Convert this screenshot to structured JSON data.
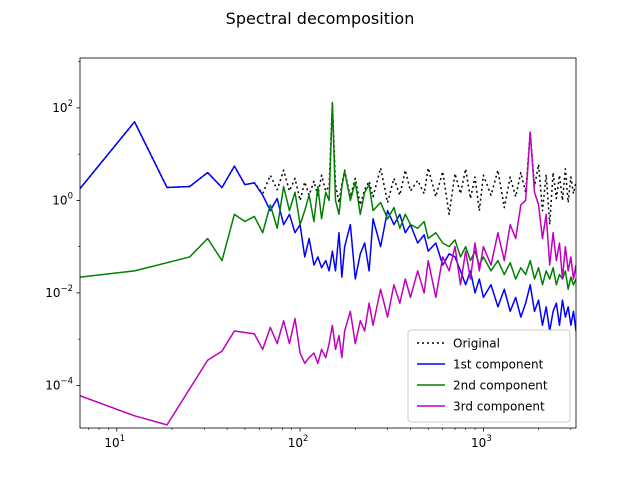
{
  "chart_data": {
    "type": "line",
    "title": "Spectral decomposition",
    "xscale": "log",
    "yscale": "log",
    "xlim": [
      6.3,
      3200
    ],
    "ylim": [
      1.2e-05,
      1200
    ],
    "x_ticks": [
      {
        "value": 10,
        "base": "10",
        "exp": "1"
      },
      {
        "value": 100,
        "base": "10",
        "exp": "2"
      },
      {
        "value": 1000,
        "base": "10",
        "exp": "3"
      }
    ],
    "y_ticks": [
      {
        "value": 0.0001,
        "base": "10",
        "exp": "−4"
      },
      {
        "value": 0.01,
        "base": "10",
        "exp": "−2"
      },
      {
        "value": 1,
        "base": "10",
        "exp": "0"
      },
      {
        "value": 100,
        "base": "10",
        "exp": "2"
      }
    ],
    "legend_position": "lower-right",
    "series": [
      {
        "name": "Original",
        "color": "#000000",
        "dash": "dotted",
        "points": [
          [
            6.3,
            1.8
          ],
          [
            12.5,
            50
          ],
          [
            18.8,
            1.9
          ],
          [
            25,
            2.0
          ],
          [
            31.3,
            4.0
          ],
          [
            37.5,
            1.9
          ],
          [
            43.8,
            5.5
          ],
          [
            50,
            2.2
          ],
          [
            56.3,
            2.4
          ],
          [
            62.5,
            1.4
          ],
          [
            68.8,
            3.5
          ],
          [
            75,
            1.7
          ],
          [
            81.3,
            4.5
          ],
          [
            87.5,
            1.6
          ],
          [
            93.8,
            3.0
          ],
          [
            100,
            1.0
          ],
          [
            106,
            2.5
          ],
          [
            112,
            1.3
          ],
          [
            119,
            2.6
          ],
          [
            125,
            1.3
          ],
          [
            131,
            3.5
          ],
          [
            138,
            1.6
          ],
          [
            144,
            2.0
          ],
          [
            150,
            130
          ],
          [
            156,
            2.2
          ],
          [
            163,
            0.9
          ],
          [
            169,
            2.3
          ],
          [
            175,
            4.5
          ],
          [
            188,
            1.2
          ],
          [
            200,
            3.0
          ],
          [
            213,
            0.8
          ],
          [
            225,
            1.7
          ],
          [
            238,
            2.6
          ],
          [
            250,
            1.2
          ],
          [
            275,
            5.0
          ],
          [
            300,
            0.9
          ],
          [
            325,
            3.0
          ],
          [
            350,
            1.3
          ],
          [
            375,
            4.5
          ],
          [
            400,
            1.6
          ],
          [
            438,
            2.7
          ],
          [
            475,
            1.4
          ],
          [
            500,
            5.0
          ],
          [
            550,
            1.2
          ],
          [
            600,
            4.2
          ],
          [
            650,
            0.5
          ],
          [
            700,
            3.8
          ],
          [
            750,
            1.4
          ],
          [
            800,
            4.8
          ],
          [
            850,
            1.1
          ],
          [
            900,
            3.2
          ],
          [
            950,
            0.6
          ],
          [
            1000,
            3.5
          ],
          [
            1100,
            1.3
          ],
          [
            1200,
            4.5
          ],
          [
            1300,
            0.7
          ],
          [
            1400,
            3.2
          ],
          [
            1500,
            1.2
          ],
          [
            1600,
            4.0
          ],
          [
            1700,
            1.5
          ],
          [
            1800,
            30
          ],
          [
            1900,
            2.0
          ],
          [
            2000,
            6.0
          ],
          [
            2100,
            0.6
          ],
          [
            2200,
            3.6
          ],
          [
            2300,
            0.3
          ],
          [
            2400,
            4.0
          ],
          [
            2500,
            1.1
          ],
          [
            2600,
            3.5
          ],
          [
            2700,
            1.0
          ],
          [
            2800,
            4.8
          ],
          [
            2900,
            0.9
          ],
          [
            3000,
            3.2
          ],
          [
            3100,
            1.4
          ],
          [
            3200,
            2.5
          ]
        ]
      },
      {
        "name": "1st component",
        "color": "#0000ff",
        "dash": "solid",
        "points": [
          [
            6.3,
            1.8
          ],
          [
            12.5,
            50
          ],
          [
            18.8,
            1.9
          ],
          [
            25,
            2.0
          ],
          [
            31.3,
            4.0
          ],
          [
            37.5,
            1.9
          ],
          [
            43.8,
            5.5
          ],
          [
            50,
            2.2
          ],
          [
            56.3,
            2.4
          ],
          [
            62.5,
            1.3
          ],
          [
            68.8,
            0.6
          ],
          [
            75,
            1.1
          ],
          [
            81.3,
            0.3
          ],
          [
            87.5,
            0.5
          ],
          [
            93.8,
            0.2
          ],
          [
            100,
            0.3
          ],
          [
            106,
            0.06
          ],
          [
            112,
            0.15
          ],
          [
            119,
            0.04
          ],
          [
            125,
            0.06
          ],
          [
            131,
            0.035
          ],
          [
            138,
            0.05
          ],
          [
            144,
            0.03
          ],
          [
            150,
            0.08
          ],
          [
            156,
            0.03
          ],
          [
            163,
            0.2
          ],
          [
            169,
            0.022
          ],
          [
            175,
            0.1
          ],
          [
            188,
            0.3
          ],
          [
            200,
            0.02
          ],
          [
            213,
            0.07
          ],
          [
            225,
            0.12
          ],
          [
            238,
            0.03
          ],
          [
            250,
            0.4
          ],
          [
            275,
            0.1
          ],
          [
            300,
            0.6
          ],
          [
            325,
            0.3
          ],
          [
            350,
            0.5
          ],
          [
            375,
            0.2
          ],
          [
            400,
            0.3
          ],
          [
            438,
            0.12
          ],
          [
            475,
            0.18
          ],
          [
            500,
            0.08
          ],
          [
            550,
            0.12
          ],
          [
            600,
            0.04
          ],
          [
            650,
            0.07
          ],
          [
            700,
            0.06
          ],
          [
            750,
            0.03
          ],
          [
            800,
            0.015
          ],
          [
            850,
            0.03
          ],
          [
            900,
            0.01
          ],
          [
            950,
            0.02
          ],
          [
            1000,
            0.008
          ],
          [
            1100,
            0.015
          ],
          [
            1200,
            0.005
          ],
          [
            1300,
            0.012
          ],
          [
            1400,
            0.004
          ],
          [
            1500,
            0.008
          ],
          [
            1600,
            0.003
          ],
          [
            1700,
            0.006
          ],
          [
            1800,
            0.015
          ],
          [
            1900,
            0.004
          ],
          [
            2000,
            0.007
          ],
          [
            2100,
            0.002
          ],
          [
            2200,
            0.005
          ],
          [
            2300,
            0.0015
          ],
          [
            2400,
            0.004
          ],
          [
            2500,
            0.006
          ],
          [
            2600,
            0.002
          ],
          [
            2700,
            0.007
          ],
          [
            2800,
            0.003
          ],
          [
            2900,
            0.005
          ],
          [
            3000,
            0.002
          ],
          [
            3100,
            0.004
          ],
          [
            3200,
            0.0015
          ]
        ]
      },
      {
        "name": "2nd component",
        "color": "#008000",
        "dash": "solid",
        "points": [
          [
            6.3,
            0.022
          ],
          [
            12.5,
            0.03
          ],
          [
            18.8,
            0.045
          ],
          [
            25,
            0.06
          ],
          [
            31.3,
            0.15
          ],
          [
            37.5,
            0.05
          ],
          [
            43.8,
            0.5
          ],
          [
            50,
            0.35
          ],
          [
            56.3,
            0.45
          ],
          [
            62.5,
            0.2
          ],
          [
            68.8,
            0.8
          ],
          [
            75,
            0.25
          ],
          [
            81.3,
            2.0
          ],
          [
            87.5,
            0.6
          ],
          [
            93.8,
            1.5
          ],
          [
            100,
            0.3
          ],
          [
            106,
            0.6
          ],
          [
            112,
            1.3
          ],
          [
            119,
            0.35
          ],
          [
            125,
            2.0
          ],
          [
            131,
            0.4
          ],
          [
            138,
            1.5
          ],
          [
            144,
            1.0
          ],
          [
            150,
            130
          ],
          [
            156,
            1.0
          ],
          [
            163,
            0.5
          ],
          [
            169,
            2.0
          ],
          [
            175,
            4.3
          ],
          [
            188,
            1.0
          ],
          [
            200,
            2.5
          ],
          [
            213,
            0.5
          ],
          [
            225,
            1.5
          ],
          [
            238,
            2.2
          ],
          [
            250,
            0.6
          ],
          [
            275,
            0.9
          ],
          [
            300,
            0.4
          ],
          [
            325,
            0.7
          ],
          [
            350,
            0.25
          ],
          [
            375,
            0.5
          ],
          [
            400,
            0.3
          ],
          [
            438,
            0.25
          ],
          [
            475,
            0.35
          ],
          [
            500,
            0.15
          ],
          [
            550,
            0.2
          ],
          [
            600,
            0.12
          ],
          [
            650,
            0.1
          ],
          [
            700,
            0.14
          ],
          [
            750,
            0.06
          ],
          [
            800,
            0.1
          ],
          [
            850,
            0.05
          ],
          [
            900,
            0.08
          ],
          [
            950,
            0.04
          ],
          [
            1000,
            0.06
          ],
          [
            1100,
            0.03
          ],
          [
            1200,
            0.05
          ],
          [
            1300,
            0.025
          ],
          [
            1400,
            0.045
          ],
          [
            1500,
            0.02
          ],
          [
            1600,
            0.035
          ],
          [
            1700,
            0.025
          ],
          [
            1800,
            0.05
          ],
          [
            1900,
            0.02
          ],
          [
            2000,
            0.035
          ],
          [
            2100,
            0.015
          ],
          [
            2200,
            0.03
          ],
          [
            2300,
            0.02
          ],
          [
            2400,
            0.035
          ],
          [
            2500,
            0.015
          ],
          [
            2600,
            0.025
          ],
          [
            2700,
            0.02
          ],
          [
            2800,
            0.03
          ],
          [
            2900,
            0.012
          ],
          [
            3000,
            0.022
          ],
          [
            3100,
            0.015
          ],
          [
            3200,
            0.02
          ]
        ]
      },
      {
        "name": "3rd component",
        "color": "#bf00bf",
        "dash": "solid",
        "points": [
          [
            6.3,
            6e-05
          ],
          [
            12.5,
            2.2e-05
          ],
          [
            18.8,
            1.4e-05
          ],
          [
            31.3,
            0.00035
          ],
          [
            37.5,
            0.00055
          ],
          [
            43.8,
            0.0015
          ],
          [
            56.3,
            0.0013
          ],
          [
            62.5,
            0.0006
          ],
          [
            68.8,
            0.0018
          ],
          [
            75,
            0.0008
          ],
          [
            81.3,
            0.0025
          ],
          [
            87.5,
            0.0008
          ],
          [
            93.8,
            0.0028
          ],
          [
            100,
            0.0005
          ],
          [
            106,
            0.0003
          ],
          [
            112,
            0.0004
          ],
          [
            119,
            0.0005
          ],
          [
            125,
            0.0003
          ],
          [
            131,
            0.0006
          ],
          [
            138,
            0.0004
          ],
          [
            144,
            0.0008
          ],
          [
            150,
            0.002
          ],
          [
            156,
            0.0006
          ],
          [
            163,
            0.0012
          ],
          [
            169,
            0.0004
          ],
          [
            175,
            0.0015
          ],
          [
            188,
            0.004
          ],
          [
            200,
            0.0008
          ],
          [
            213,
            0.0025
          ],
          [
            225,
            0.0015
          ],
          [
            238,
            0.006
          ],
          [
            250,
            0.002
          ],
          [
            275,
            0.012
          ],
          [
            300,
            0.003
          ],
          [
            325,
            0.015
          ],
          [
            350,
            0.006
          ],
          [
            375,
            0.02
          ],
          [
            400,
            0.008
          ],
          [
            438,
            0.03
          ],
          [
            475,
            0.01
          ],
          [
            500,
            0.05
          ],
          [
            550,
            0.008
          ],
          [
            600,
            0.06
          ],
          [
            650,
            0.03
          ],
          [
            700,
            0.1
          ],
          [
            750,
            0.015
          ],
          [
            800,
            0.08
          ],
          [
            850,
            0.02
          ],
          [
            900,
            0.12
          ],
          [
            950,
            0.03
          ],
          [
            1000,
            0.1
          ],
          [
            1100,
            0.04
          ],
          [
            1200,
            0.2
          ],
          [
            1300,
            0.05
          ],
          [
            1400,
            0.3
          ],
          [
            1500,
            0.15
          ],
          [
            1600,
            0.8
          ],
          [
            1700,
            1.0
          ],
          [
            1800,
            30
          ],
          [
            1900,
            1.5
          ],
          [
            2000,
            0.8
          ],
          [
            2100,
            0.15
          ],
          [
            2200,
            0.5
          ],
          [
            2300,
            0.04
          ],
          [
            2400,
            0.2
          ],
          [
            2500,
            0.05
          ],
          [
            2600,
            0.12
          ],
          [
            2700,
            0.02
          ],
          [
            2800,
            0.1
          ],
          [
            2900,
            0.03
          ],
          [
            3000,
            0.06
          ],
          [
            3100,
            0.02
          ],
          [
            3200,
            0.04
          ]
        ]
      }
    ]
  }
}
